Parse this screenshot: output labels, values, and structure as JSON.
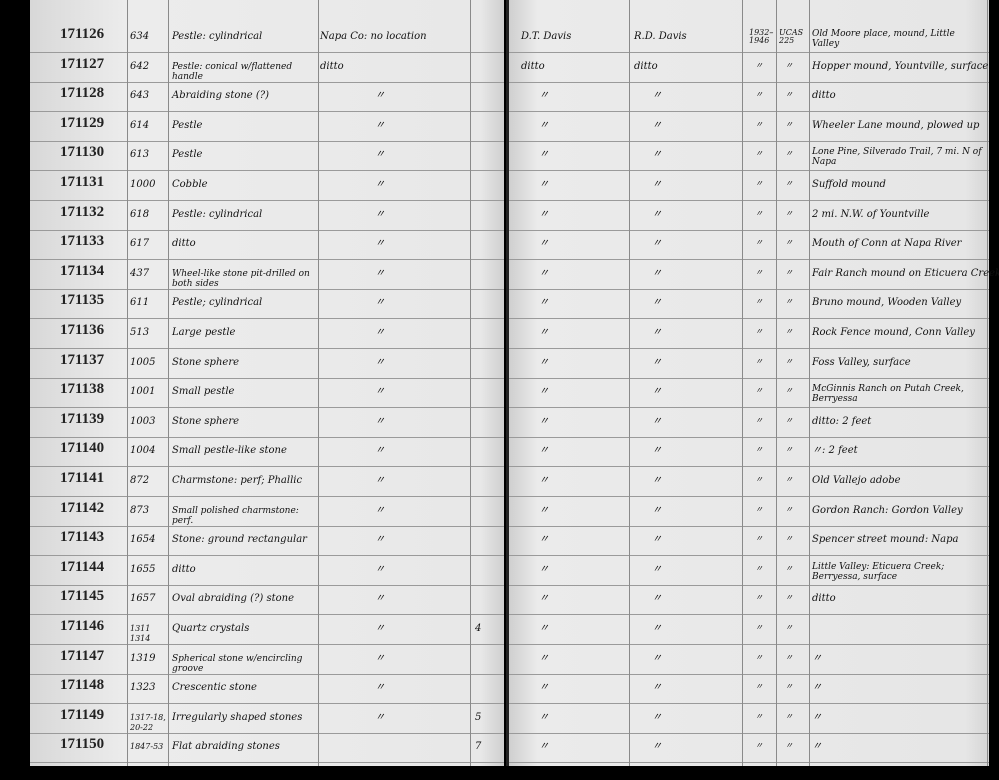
{
  "ledger": {
    "rows": [
      {
        "catalog_no": "171126",
        "accession": "634",
        "description": "Pestle: cylindrical",
        "locality_county": "Napa Co: no location",
        "count": "",
        "collector": "D.T. Davis",
        "donor": "R.D. Davis",
        "date": "1932–1946",
        "ucas": "UCAS 225",
        "locality": "Old Moore place, mound, Little Valley"
      },
      {
        "catalog_no": "171127",
        "accession": "642",
        "description": "Pestle: conical w/flattened handle",
        "locality_county": "ditto",
        "count": "",
        "collector": "ditto",
        "donor": "ditto",
        "date": "〃",
        "ucas": "〃",
        "locality": "Hopper mound, Yountville, surface"
      },
      {
        "catalog_no": "171128",
        "accession": "643",
        "description": "Abraiding stone (?)",
        "locality_county": "〃",
        "count": "",
        "collector": "〃",
        "donor": "〃",
        "date": "〃",
        "ucas": "〃",
        "locality": "ditto"
      },
      {
        "catalog_no": "171129",
        "accession": "614",
        "description": "Pestle",
        "locality_county": "〃",
        "count": "",
        "collector": "〃",
        "donor": "〃",
        "date": "〃",
        "ucas": "〃",
        "locality": "Wheeler Lane mound, plowed up"
      },
      {
        "catalog_no": "171130",
        "accession": "613",
        "description": "Pestle",
        "locality_county": "〃",
        "count": "",
        "collector": "〃",
        "donor": "〃",
        "date": "〃",
        "ucas": "〃",
        "locality": "Lone Pine, Silverado Trail, 7 mi. N of Napa"
      },
      {
        "catalog_no": "171131",
        "accession": "1000",
        "description": "Cobble",
        "locality_county": "〃",
        "count": "",
        "collector": "〃",
        "donor": "〃",
        "date": "〃",
        "ucas": "〃",
        "locality": "Suffold mound"
      },
      {
        "catalog_no": "171132",
        "accession": "618",
        "description": "Pestle: cylindrical",
        "locality_county": "〃",
        "count": "",
        "collector": "〃",
        "donor": "〃",
        "date": "〃",
        "ucas": "〃",
        "locality": "2 mi. N.W. of Yountville"
      },
      {
        "catalog_no": "171133",
        "accession": "617",
        "description": "ditto",
        "locality_county": "〃",
        "count": "",
        "collector": "〃",
        "donor": "〃",
        "date": "〃",
        "ucas": "〃",
        "locality": "Mouth of Conn at Napa River"
      },
      {
        "catalog_no": "171134",
        "accession": "437",
        "description": "Wheel-like stone pit-drilled on both sides",
        "locality_county": "〃",
        "count": "",
        "collector": "〃",
        "donor": "〃",
        "date": "〃",
        "ucas": "〃",
        "locality": "Fair Ranch mound on Eticuera Creek"
      },
      {
        "catalog_no": "171135",
        "accession": "611",
        "description": "Pestle; cylindrical",
        "locality_county": "〃",
        "count": "",
        "collector": "〃",
        "donor": "〃",
        "date": "〃",
        "ucas": "〃",
        "locality": "Bruno mound, Wooden Valley"
      },
      {
        "catalog_no": "171136",
        "accession": "513",
        "description": "Large pestle",
        "locality_county": "〃",
        "count": "",
        "collector": "〃",
        "donor": "〃",
        "date": "〃",
        "ucas": "〃",
        "locality": "Rock Fence mound, Conn Valley"
      },
      {
        "catalog_no": "171137",
        "accession": "1005",
        "description": "Stone sphere",
        "locality_county": "〃",
        "count": "",
        "collector": "〃",
        "donor": "〃",
        "date": "〃",
        "ucas": "〃",
        "locality": "Foss Valley, surface"
      },
      {
        "catalog_no": "171138",
        "accession": "1001",
        "description": "Small pestle",
        "locality_county": "〃",
        "count": "",
        "collector": "〃",
        "donor": "〃",
        "date": "〃",
        "ucas": "〃",
        "locality": "McGinnis Ranch on Putah Creek, Berryessa"
      },
      {
        "catalog_no": "171139",
        "accession": "1003",
        "description": "Stone sphere",
        "locality_county": "〃",
        "count": "",
        "collector": "〃",
        "donor": "〃",
        "date": "〃",
        "ucas": "〃",
        "locality": "ditto: 2 feet"
      },
      {
        "catalog_no": "171140",
        "accession": "1004",
        "description": "Small pestle-like stone",
        "locality_county": "〃",
        "count": "",
        "collector": "〃",
        "donor": "〃",
        "date": "〃",
        "ucas": "〃",
        "locality": "〃: 2 feet"
      },
      {
        "catalog_no": "171141",
        "accession": "872",
        "description": "Charmstone: perf; Phallic",
        "locality_county": "〃",
        "count": "",
        "collector": "〃",
        "donor": "〃",
        "date": "〃",
        "ucas": "〃",
        "locality": "Old Vallejo adobe"
      },
      {
        "catalog_no": "171142",
        "accession": "873",
        "description": "Small polished charmstone: perf.",
        "locality_county": "〃",
        "count": "",
        "collector": "〃",
        "donor": "〃",
        "date": "〃",
        "ucas": "〃",
        "locality": "Gordon Ranch: Gordon Valley"
      },
      {
        "catalog_no": "171143",
        "accession": "1654",
        "description": "Stone: ground rectangular",
        "locality_county": "〃",
        "count": "",
        "collector": "〃",
        "donor": "〃",
        "date": "〃",
        "ucas": "〃",
        "locality": "Spencer street mound: Napa"
      },
      {
        "catalog_no": "171144",
        "accession": "1655",
        "description": "ditto",
        "locality_county": "〃",
        "count": "",
        "collector": "〃",
        "donor": "〃",
        "date": "〃",
        "ucas": "〃",
        "locality": "Little Valley: Eticuera Creek; Berryessa, surface"
      },
      {
        "catalog_no": "171145",
        "accession": "1657",
        "description": "Oval abraiding (?) stone",
        "locality_county": "〃",
        "count": "",
        "collector": "〃",
        "donor": "〃",
        "date": "〃",
        "ucas": "〃",
        "locality": "ditto"
      },
      {
        "catalog_no": "171146",
        "accession": "1311 1314",
        "description": "Quartz crystals",
        "locality_county": "〃",
        "count": "4",
        "collector": "〃",
        "donor": "〃",
        "date": "〃",
        "ucas": "〃",
        "locality": ""
      },
      {
        "catalog_no": "171147",
        "accession": "1319",
        "description": "Spherical stone w/encircling groove",
        "locality_county": "〃",
        "count": "",
        "collector": "〃",
        "donor": "〃",
        "date": "〃",
        "ucas": "〃",
        "locality": "〃"
      },
      {
        "catalog_no": "171148",
        "accession": "1323",
        "description": "Crescentic stone",
        "locality_county": "〃",
        "count": "",
        "collector": "〃",
        "donor": "〃",
        "date": "〃",
        "ucas": "〃",
        "locality": "〃"
      },
      {
        "catalog_no": "171149",
        "accession": "1317-18, 20-22",
        "description": "Irregularly shaped stones",
        "locality_county": "〃",
        "count": "5",
        "collector": "〃",
        "donor": "〃",
        "date": "〃",
        "ucas": "〃",
        "locality": "〃"
      },
      {
        "catalog_no": "171150",
        "accession": "1847-53",
        "description": "Flat abraiding stones",
        "locality_county": "",
        "count": "7",
        "collector": "〃",
        "donor": "〃",
        "date": "〃",
        "ucas": "〃",
        "locality": "〃"
      }
    ]
  }
}
